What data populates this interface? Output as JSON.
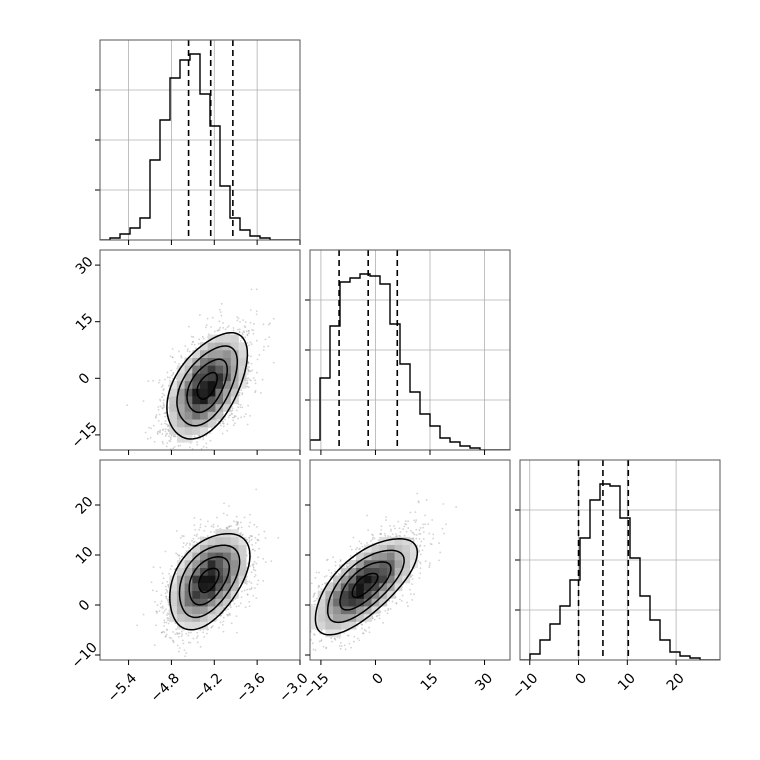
{
  "figure": {
    "style": {
      "background": "#ffffff",
      "axes_edge_color": "#555555",
      "grid_color": "#b0b0b0",
      "line_color": "#000000",
      "scatter_color": "#9e9e9e"
    }
  },
  "chart_data": [
    {
      "type": "histogram",
      "panel": "row1-col1",
      "xlim": [
        -5.8,
        -3.0
      ],
      "ylim": [
        0,
        1
      ],
      "grid": true,
      "bins_x": [
        -5.8,
        -5.66,
        -5.52,
        -5.38,
        -5.24,
        -5.1,
        -4.96,
        -4.82,
        -4.68,
        -4.54,
        -4.4,
        -4.26,
        -4.12,
        -3.98,
        -3.84,
        -3.7,
        -3.56,
        -3.42,
        -3.28,
        -3.14,
        -3.0
      ],
      "counts": [
        0,
        0.01,
        0.03,
        0.06,
        0.11,
        0.4,
        0.6,
        0.81,
        0.9,
        0.93,
        0.73,
        0.57,
        0.27,
        0.11,
        0.05,
        0.02,
        0.01,
        0,
        0,
        0
      ],
      "quantile_lines": [
        -4.56,
        -4.25,
        -3.94
      ]
    },
    {
      "type": "histogram",
      "panel": "row2-col2",
      "xlim": [
        -18,
        37
      ],
      "ylim": [
        0,
        1
      ],
      "grid": true,
      "bins_x": [
        -18,
        -15.25,
        -12.5,
        -9.75,
        -7,
        -4.25,
        -1.5,
        1.25,
        4,
        6.75,
        9.5,
        12.25,
        15,
        17.75,
        20.5,
        23.25,
        26,
        28.75,
        31.5,
        34.25,
        37
      ],
      "counts": [
        0.05,
        0.36,
        0.62,
        0.84,
        0.86,
        0.88,
        0.87,
        0.83,
        0.63,
        0.43,
        0.29,
        0.18,
        0.12,
        0.06,
        0.04,
        0.02,
        0.01,
        0,
        0,
        0
      ],
      "quantile_lines": [
        -10.0,
        -2.0,
        6.0
      ]
    },
    {
      "type": "histogram",
      "panel": "row3-col3",
      "xlim": [
        -12,
        29
      ],
      "ylim": [
        0,
        1
      ],
      "grid": true,
      "bins_x": [
        -12,
        -9.95,
        -7.9,
        -5.85,
        -3.8,
        -1.75,
        0.3,
        2.35,
        4.4,
        6.45,
        8.5,
        10.55,
        12.6,
        14.65,
        16.7,
        18.75,
        20.8,
        22.85,
        24.9,
        26.95,
        29
      ],
      "counts": [
        0,
        0.03,
        0.1,
        0.18,
        0.27,
        0.4,
        0.61,
        0.8,
        0.88,
        0.87,
        0.71,
        0.51,
        0.32,
        0.2,
        0.1,
        0.04,
        0.02,
        0.01,
        0,
        0
      ],
      "quantile_lines": [
        0.0,
        5.0,
        10.2
      ]
    },
    {
      "type": "heatmap",
      "subtype": "2d-density-with-contours",
      "panel": "row2-col1",
      "xlim": [
        -5.8,
        -3.0
      ],
      "ylim": [
        -19,
        34
      ],
      "x_variable": "param1",
      "y_variable": "param2",
      "center": [
        -4.3,
        -2
      ],
      "spread": [
        0.28,
        7.0
      ],
      "correlation": 0.5,
      "contour_levels_sigma": [
        0.5,
        1.0,
        1.5,
        2.0
      ]
    },
    {
      "type": "heatmap",
      "subtype": "2d-density-with-contours",
      "panel": "row3-col1",
      "xlim": [
        -5.8,
        -3.0
      ],
      "ylim": [
        -11,
        29
      ],
      "x_variable": "param1",
      "y_variable": "param3",
      "center": [
        -4.28,
        5
      ],
      "spread": [
        0.28,
        4.8
      ],
      "correlation": 0.45,
      "contour_levels_sigma": [
        0.5,
        1.0,
        1.5,
        2.0
      ]
    },
    {
      "type": "heatmap",
      "subtype": "2d-density-with-contours",
      "panel": "row3-col2",
      "xlim": [
        -18,
        37
      ],
      "ylim": [
        -11,
        29
      ],
      "x_variable": "param2",
      "y_variable": "param3",
      "center": [
        -3,
        4
      ],
      "spread": [
        7.0,
        4.8
      ],
      "correlation": 0.68,
      "contour_levels_sigma": [
        0.5,
        1.0,
        1.5,
        2.0
      ]
    }
  ],
  "axes": {
    "param1": {
      "ticks": [
        -5.4,
        -4.8,
        -4.2,
        -3.6,
        -3.0
      ],
      "tick_labels": [
        "−5.4",
        "−4.8",
        "−4.2",
        "−3.6",
        "−3.0"
      ]
    },
    "param2": {
      "ticks": [
        -15,
        0,
        15,
        30
      ],
      "tick_labels": [
        "−15",
        "0",
        "15",
        "30"
      ]
    },
    "param3": {
      "ticks": [
        -10,
        0,
        10,
        20
      ],
      "tick_labels": [
        "−10",
        "0",
        "10",
        "20"
      ]
    }
  }
}
